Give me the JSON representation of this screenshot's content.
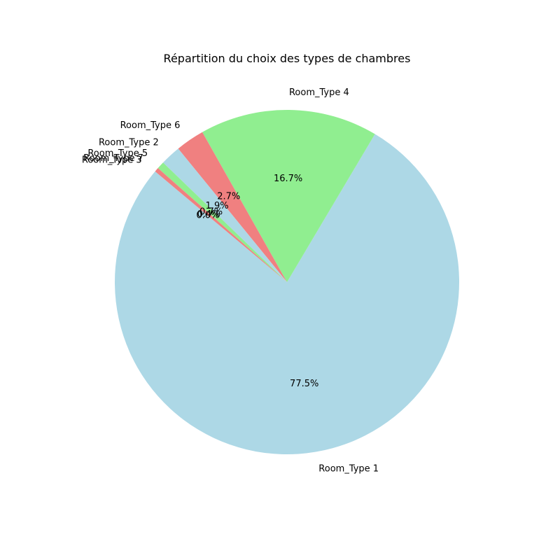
{
  "chart_data": {
    "type": "pie",
    "title": "Répartition du choix des types de chambres",
    "start_angle_deg": 140,
    "direction": "counterclockwise",
    "slices": [
      {
        "label": "Room_Type 1",
        "value": 77.5,
        "pct_label": "77.5%",
        "color": "#add8e6"
      },
      {
        "label": "Room_Type 4",
        "value": 16.7,
        "pct_label": "16.7%",
        "color": "#90ee90"
      },
      {
        "label": "Room_Type 6",
        "value": 2.7,
        "pct_label": "2.7%",
        "color": "#f08080"
      },
      {
        "label": "Room_Type 2",
        "value": 1.9,
        "pct_label": "1.9%",
        "color": "#add8e6"
      },
      {
        "label": "Room_Type 5",
        "value": 0.7,
        "pct_label": "0.7%",
        "color": "#90ee90"
      },
      {
        "label": "Room_Type 7",
        "value": 0.4,
        "pct_label": "0.4%",
        "color": "#f08080"
      },
      {
        "label": "Room_Type 3",
        "value": 0.0,
        "pct_label": "0.0%",
        "color": "#add8e6"
      }
    ]
  }
}
